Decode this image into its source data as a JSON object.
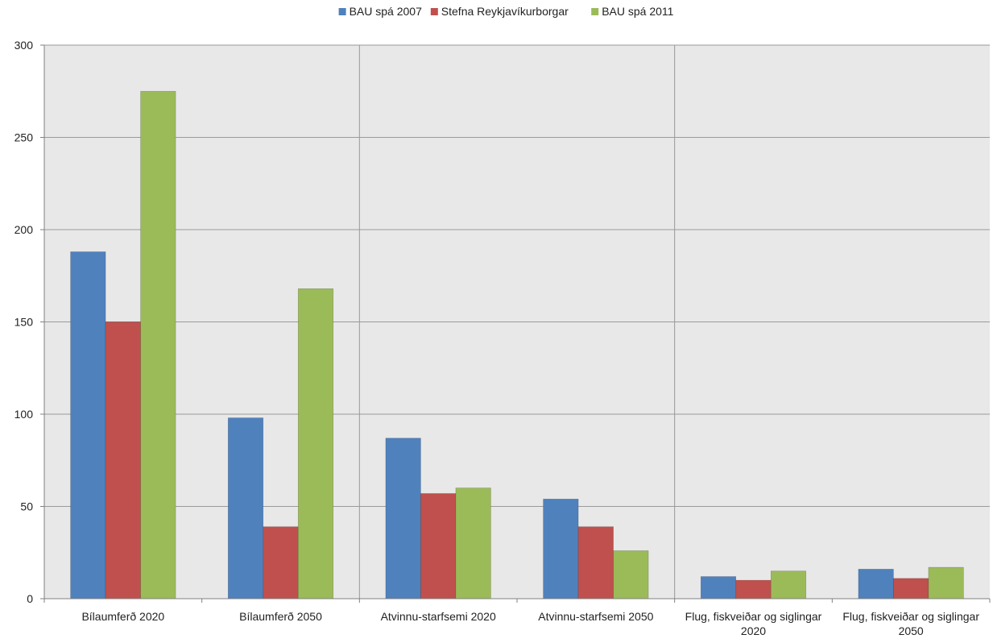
{
  "chart_data": {
    "type": "bar",
    "title": "",
    "xlabel": "",
    "ylabel": "",
    "ylim": [
      0,
      300
    ],
    "yticks": [
      0,
      50,
      100,
      150,
      200,
      250,
      300
    ],
    "grid": true,
    "legend_position": "top",
    "categories": [
      [
        "Bílaumferð 2020"
      ],
      [
        "Bílaumferð 2050"
      ],
      [
        "Atvinnu-starfsemi 2020"
      ],
      [
        "Atvinnu-starfsemi 2050"
      ],
      [
        "Flug, fiskveiðar og siglingar",
        "2020"
      ],
      [
        "Flug, fiskveiðar og siglingar",
        "2050"
      ]
    ],
    "series": [
      {
        "name": "BAU spá 2007",
        "color": "#4f81bd",
        "values": [
          188,
          98,
          87,
          54,
          12,
          16
        ]
      },
      {
        "name": "Stefna Reykjavíkurborgar",
        "color": "#c0504d",
        "values": [
          150,
          39,
          57,
          39,
          10,
          11
        ]
      },
      {
        "name": "BAU spá 2011",
        "color": "#9bbb59",
        "values": [
          275,
          168,
          60,
          26,
          15,
          17
        ]
      }
    ],
    "plot_background": "#e8e8e8",
    "gridline_color": "#9a9a9a"
  }
}
